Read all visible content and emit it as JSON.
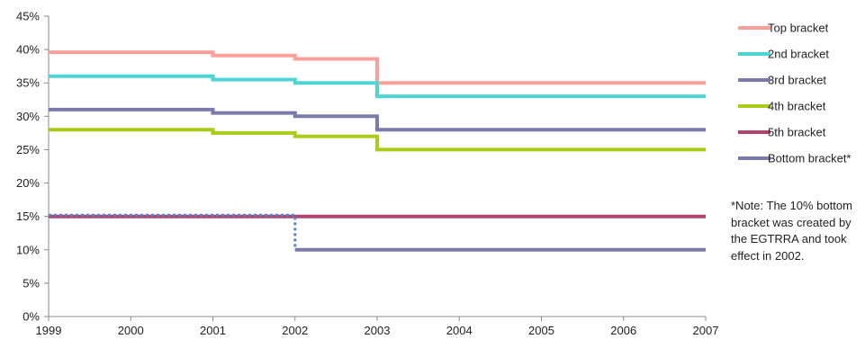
{
  "chart_data": {
    "type": "line",
    "step": true,
    "x": [
      1999,
      2000,
      2001,
      2002,
      2003,
      2004,
      2005,
      2006,
      2007
    ],
    "x_tick_labels": [
      "1999",
      "2000",
      "2001",
      "2002",
      "2003",
      "2004",
      "2005",
      "2006",
      "2007"
    ],
    "y_tick_labels": [
      "0%",
      "5%",
      "10%",
      "15%",
      "20%",
      "25%",
      "30%",
      "35%",
      "40%",
      "45%"
    ],
    "ylim": [
      0,
      45
    ],
    "xlim": [
      1999,
      2007
    ],
    "grid": false,
    "legend_position": "right",
    "series": [
      {
        "name": "Top bracket",
        "color": "#f9a09a",
        "points": [
          [
            1999,
            39.6
          ],
          [
            2001,
            39.6
          ],
          [
            2001,
            39.1
          ],
          [
            2002,
            39.1
          ],
          [
            2002,
            38.6
          ],
          [
            2003,
            38.6
          ],
          [
            2003,
            35
          ],
          [
            2007,
            35
          ]
        ]
      },
      {
        "name": "2nd bracket",
        "color": "#4dd5d5",
        "points": [
          [
            1999,
            36
          ],
          [
            2001,
            36
          ],
          [
            2001,
            35.5
          ],
          [
            2002,
            35.5
          ],
          [
            2002,
            35
          ],
          [
            2003,
            35
          ],
          [
            2003,
            33
          ],
          [
            2007,
            33
          ]
        ]
      },
      {
        "name": "3rd bracket",
        "color": "#7a7bab",
        "points": [
          [
            1999,
            31
          ],
          [
            2001,
            31
          ],
          [
            2001,
            30.5
          ],
          [
            2002,
            30.5
          ],
          [
            2002,
            30
          ],
          [
            2003,
            30
          ],
          [
            2003,
            28
          ],
          [
            2007,
            28
          ]
        ]
      },
      {
        "name": "4th bracket",
        "color": "#a8cc18",
        "points": [
          [
            1999,
            28
          ],
          [
            2001,
            28
          ],
          [
            2001,
            27.5
          ],
          [
            2002,
            27.5
          ],
          [
            2002,
            27
          ],
          [
            2003,
            27
          ],
          [
            2003,
            25
          ],
          [
            2007,
            25
          ]
        ]
      },
      {
        "name": "5th bracket",
        "color": "#b0446e",
        "points": [
          [
            1999,
            15
          ],
          [
            2007,
            15
          ]
        ]
      },
      {
        "name": "Bottom bracket*",
        "color": "#7a7bab",
        "points": [
          [
            2002,
            10
          ],
          [
            2007,
            10
          ]
        ]
      }
    ],
    "connector": {
      "color": "#4f86c6",
      "points": [
        [
          1999,
          15.2
        ],
        [
          2002,
          15.2
        ],
        [
          2002,
          10
        ]
      ]
    },
    "note": "*Note: The 10% bottom bracket was created by the EGTRRA and took effect in 2002."
  }
}
